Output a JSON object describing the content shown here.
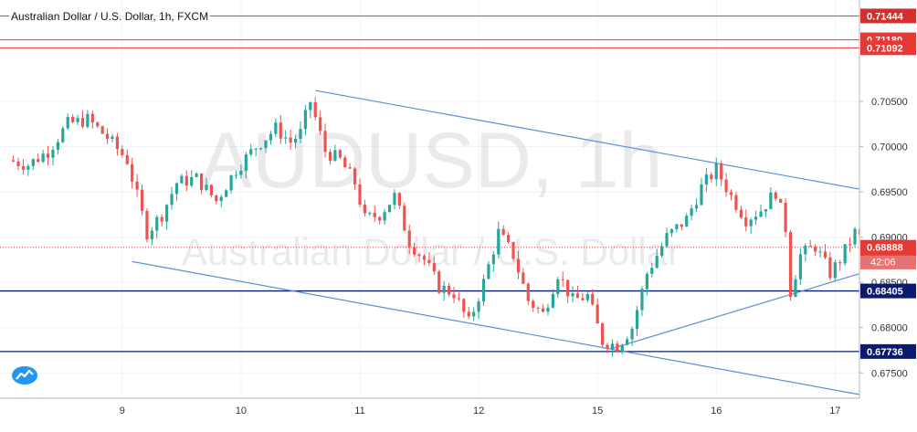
{
  "header": {
    "title": "Australian Dollar / U.S. Dollar, 1h, FXCM"
  },
  "watermark": {
    "symbol": "AUDUSD, 1h",
    "name": "Australian Dollar / U.S. Dollar"
  },
  "colors": {
    "up": "#26a69a",
    "down": "#ef5350",
    "trend": "#5b8fd6",
    "support": "#0d1b6e",
    "resistance": "#e53935",
    "price": "#e53935",
    "countdown": "#e57373",
    "axis_text": "#333333",
    "grid": "#f0f3fa"
  },
  "chart_data": {
    "type": "candlestick",
    "title": "Australian Dollar / U.S. Dollar, 1h, FXCM",
    "ylim": [
      0.6722,
      0.7162
    ],
    "y_ticks": [
      0.675,
      0.68,
      0.685,
      0.69,
      0.695,
      0.7,
      0.705
    ],
    "y_tick_labels": [
      "0.67500",
      "0.68000",
      "0.68500",
      "0.69000",
      "0.69500",
      "0.70000",
      "0.70500"
    ],
    "x_ticks": [
      {
        "label": "9",
        "at": 22
      },
      {
        "label": "10",
        "at": 46
      },
      {
        "label": "11",
        "at": 70
      },
      {
        "label": "12",
        "at": 94
      },
      {
        "label": "15",
        "at": 118
      },
      {
        "label": "16",
        "at": 142
      },
      {
        "label": "17",
        "at": 166
      }
    ],
    "bar_count": 175,
    "grid": true,
    "anchors": [
      [
        0,
        0.6985
      ],
      [
        4,
        0.698
      ],
      [
        8,
        0.6995
      ],
      [
        12,
        0.7025
      ],
      [
        16,
        0.703
      ],
      [
        20,
        0.701
      ],
      [
        24,
        0.6985
      ],
      [
        28,
        0.6905
      ],
      [
        31,
        0.6925
      ],
      [
        34,
        0.696
      ],
      [
        38,
        0.6965
      ],
      [
        42,
        0.694
      ],
      [
        46,
        0.6975
      ],
      [
        50,
        0.7
      ],
      [
        54,
        0.702
      ],
      [
        57,
        0.7005
      ],
      [
        59,
        0.7015
      ],
      [
        61,
        0.705
      ],
      [
        64,
        0.6995
      ],
      [
        67,
        0.6985
      ],
      [
        70,
        0.696
      ],
      [
        72,
        0.692
      ],
      [
        75,
        0.6925
      ],
      [
        78,
        0.6945
      ],
      [
        81,
        0.6895
      ],
      [
        84,
        0.6875
      ],
      [
        87,
        0.6845
      ],
      [
        90,
        0.6838
      ],
      [
        93,
        0.6805
      ],
      [
        96,
        0.685
      ],
      [
        99,
        0.6905
      ],
      [
        102,
        0.688
      ],
      [
        105,
        0.683
      ],
      [
        108,
        0.6815
      ],
      [
        111,
        0.686
      ],
      [
        114,
        0.683
      ],
      [
        117,
        0.6835
      ],
      [
        120,
        0.6785
      ],
      [
        123,
        0.678
      ],
      [
        126,
        0.68
      ],
      [
        129,
        0.686
      ],
      [
        133,
        0.69
      ],
      [
        137,
        0.692
      ],
      [
        140,
        0.6955
      ],
      [
        143,
        0.6975
      ],
      [
        146,
        0.6945
      ],
      [
        149,
        0.692
      ],
      [
        152,
        0.693
      ],
      [
        155,
        0.695
      ],
      [
        157,
        0.691
      ],
      [
        158,
        0.684
      ],
      [
        160,
        0.688
      ],
      [
        163,
        0.689
      ],
      [
        166,
        0.686
      ],
      [
        168,
        0.6875
      ],
      [
        171,
        0.6905
      ],
      [
        174,
        0.6888
      ]
    ],
    "trendlines": [
      {
        "name": "upper-channel",
        "from": [
          61,
          0.7062
        ],
        "to": [
          176,
          0.6948
        ]
      },
      {
        "name": "lower-channel",
        "from": [
          24,
          0.6873
        ],
        "to": [
          176,
          0.6721
        ]
      },
      {
        "name": "rising-support",
        "from": [
          121,
          0.6777
        ],
        "to": [
          176,
          0.6868
        ]
      }
    ],
    "levels": [
      {
        "name": "resistance-1",
        "value": 0.71444,
        "label": "0.71444",
        "style": "red-dark"
      },
      {
        "name": "resistance-2",
        "value": 0.7118,
        "label": "0.71180",
        "style": "red"
      },
      {
        "name": "resistance-3",
        "value": 0.71092,
        "label": "0.71092",
        "style": "red"
      },
      {
        "name": "support-1",
        "value": 0.68405,
        "label": "0.68405",
        "style": "navy"
      },
      {
        "name": "support-2",
        "value": 0.67736,
        "label": "0.67736",
        "style": "navy"
      }
    ],
    "last_price": {
      "value": 0.68888,
      "label": "0.68888",
      "countdown": "42:06"
    }
  }
}
